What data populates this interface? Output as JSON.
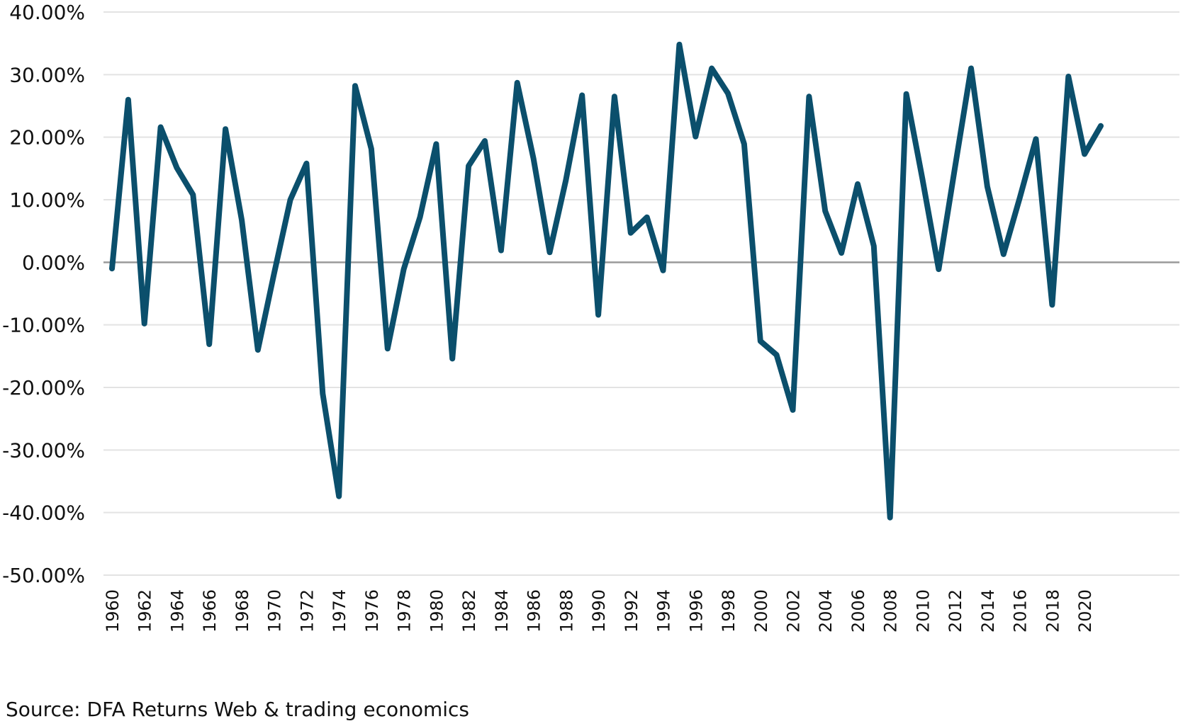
{
  "chart_data": {
    "type": "line",
    "title": "",
    "xlabel": "",
    "ylabel": "",
    "x": [
      1960,
      1961,
      1962,
      1963,
      1964,
      1965,
      1966,
      1967,
      1968,
      1969,
      1970,
      1971,
      1972,
      1973,
      1974,
      1975,
      1976,
      1977,
      1978,
      1979,
      1980,
      1981,
      1982,
      1983,
      1984,
      1985,
      1986,
      1987,
      1988,
      1989,
      1990,
      1991,
      1992,
      1993,
      1994,
      1995,
      1996,
      1997,
      1998,
      1999,
      2000,
      2001,
      2002,
      2003,
      2004,
      2005,
      2006,
      2007,
      2008,
      2009,
      2010,
      2011,
      2012,
      2013,
      2014,
      2015,
      2016,
      2017,
      2018,
      2019,
      2020,
      2021
    ],
    "series": [
      {
        "values": [
          -1.0,
          26.0,
          -9.8,
          21.6,
          15.1,
          10.8,
          -13.1,
          21.3,
          6.8,
          -14.0,
          -1.8,
          10.0,
          15.8,
          -21.0,
          -37.4,
          28.2,
          18.1,
          -13.8,
          -1.1,
          7.2,
          18.9,
          -15.4,
          15.4,
          19.4,
          1.9,
          28.7,
          16.6,
          1.6,
          13.1,
          26.7,
          -8.4,
          26.5,
          4.7,
          7.2,
          -1.3,
          34.8,
          20.1,
          31.0,
          27.0,
          18.9,
          -12.6,
          -14.8,
          -23.6,
          26.5,
          8.2,
          1.5,
          12.5,
          2.6,
          -40.8,
          26.9,
          13.3,
          -1.1,
          15.1,
          31.0,
          12.1,
          1.3,
          10.3,
          19.7,
          -6.8,
          29.7,
          17.3,
          21.8
        ]
      }
    ],
    "ylim": [
      -50,
      40
    ],
    "ytick_step": 10,
    "ytick_labels": [
      "40.00%",
      "30.00%",
      "20.00%",
      "10.00%",
      "0.00%",
      "-10.00%",
      "-20.00%",
      "-30.00%",
      "-40.00%",
      "-50.00%"
    ],
    "xtick_labels": [
      "1960",
      "1962",
      "1964",
      "1966",
      "1968",
      "1970",
      "1972",
      "1974",
      "1976",
      "1978",
      "1980",
      "1982",
      "1984",
      "1986",
      "1988",
      "1990",
      "1992",
      "1994",
      "1996",
      "1998",
      "2000",
      "2002",
      "2004",
      "2006",
      "2008",
      "2010",
      "2012",
      "2014",
      "2016",
      "2018",
      "2020"
    ],
    "grid": true,
    "line_color": "#0b4f6c",
    "grid_color": "#e3e3e3",
    "zero_line_color": "#9a9a9a"
  },
  "source_text": "Source: DFA Returns Web & trading economics"
}
